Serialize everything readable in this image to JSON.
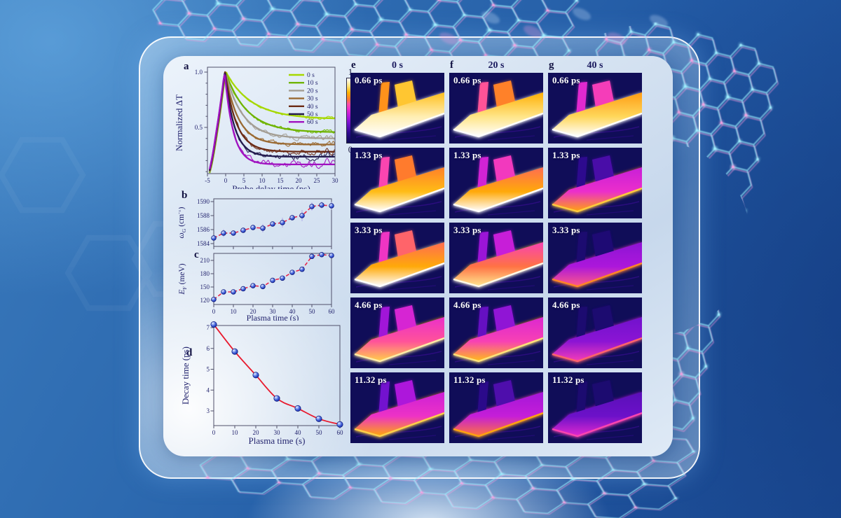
{
  "panel_letters": {
    "a": "a",
    "b": "b",
    "c": "c",
    "d": "d"
  },
  "colorbar": {
    "top_label": "1",
    "bottom_label": "0",
    "stops": [
      [
        0,
        "#0d0b56"
      ],
      [
        0.15,
        "#2d0a8e"
      ],
      [
        0.3,
        "#7312cf"
      ],
      [
        0.42,
        "#b818dd"
      ],
      [
        0.52,
        "#ea2dcc"
      ],
      [
        0.6,
        "#ff4da6"
      ],
      [
        0.68,
        "#ff7b2d"
      ],
      [
        0.78,
        "#ffb400"
      ],
      [
        0.88,
        "#ffe27a"
      ],
      [
        1,
        "#ffffff"
      ]
    ]
  },
  "chart_data": [
    {
      "id": "a",
      "type": "line",
      "title": "",
      "xlabel": "Probe delay time (ps)",
      "ylabel": "Normalized ΔT",
      "xlim": [
        -5,
        30
      ],
      "xticks": [
        -5,
        0,
        5,
        10,
        15,
        20,
        25,
        30
      ],
      "yticks_labeled": [
        1.0,
        0.5
      ],
      "yticks_minor": [
        0.9,
        0.8,
        0.7,
        0.6,
        0.4,
        0.3,
        0.2,
        0.1
      ],
      "legend_position": "top-right",
      "series": [
        {
          "name": "0 s",
          "color": "#a6d800",
          "tau": 7.15,
          "peak": 1.0,
          "plateau": 0.575,
          "noise": 0.008
        },
        {
          "name": "10 s",
          "color": "#6fb400",
          "tau": 5.85,
          "peak": 1.0,
          "plateau": 0.455,
          "noise": 0.01
        },
        {
          "name": "20 s",
          "color": "#a39d93",
          "tau": 4.7,
          "peak": 1.0,
          "plateau": 0.4,
          "noise": 0.012
        },
        {
          "name": "30 s",
          "color": "#9a6a33",
          "tau": 3.6,
          "peak": 1.0,
          "plateau": 0.345,
          "noise": 0.014
        },
        {
          "name": "40 s",
          "color": "#6b2a14",
          "tau": 3.1,
          "peak": 1.0,
          "plateau": 0.28,
          "noise": 0.016
        },
        {
          "name": "50 s",
          "color": "#221a4e",
          "tau": 2.6,
          "peak": 1.0,
          "plateau": 0.235,
          "noise": 0.018
        },
        {
          "name": "60 s",
          "color": "#a012c0",
          "tau": 2.35,
          "peak": 1.0,
          "plateau": 0.165,
          "noise": 0.022
        }
      ]
    },
    {
      "id": "b",
      "type": "scatter-line",
      "title": "",
      "xlabel": "",
      "ylabel_parts": {
        "pre": "ω",
        "sub": "G",
        "mid": " (cm",
        "sup": "-1",
        "post": ")"
      },
      "xlim": [
        0,
        60
      ],
      "xticks": [
        0,
        10,
        20,
        30,
        40,
        50,
        60
      ],
      "show_x_labels": false,
      "ylim": [
        1583.6,
        1590.4
      ],
      "yticks": [
        1584,
        1586,
        1588,
        1590
      ],
      "x": [
        0,
        5,
        10,
        15,
        20,
        25,
        30,
        35,
        40,
        45,
        50,
        55,
        60
      ],
      "y": [
        1584.8,
        1585.5,
        1585.5,
        1585.9,
        1586.3,
        1586.2,
        1586.8,
        1587.0,
        1587.7,
        1588.0,
        1589.3,
        1589.5,
        1589.4
      ],
      "yerr": [
        0.25,
        0.55,
        0.3,
        0.3,
        0.35,
        0.6,
        0.3,
        0.7,
        0.35,
        0.8,
        0.6,
        0.5,
        0.55
      ],
      "line_style": "dashed",
      "line_color": "#e8274b",
      "marker": "blue-sphere"
    },
    {
      "id": "c",
      "type": "scatter-line",
      "title": "",
      "xlabel": "Plasma time (s)",
      "ylabel_parts": {
        "pre": "E",
        "sub": "F",
        "mid": " (meV)"
      },
      "xlim": [
        0,
        60
      ],
      "xticks": [
        0,
        10,
        20,
        30,
        40,
        50,
        60
      ],
      "show_x_labels": true,
      "ylim": [
        110,
        226
      ],
      "yticks": [
        120,
        150,
        180,
        210
      ],
      "x": [
        0,
        5,
        10,
        15,
        20,
        25,
        30,
        35,
        40,
        45,
        50,
        55,
        60
      ],
      "y": [
        122,
        139,
        139,
        146,
        153,
        151,
        165,
        170,
        183,
        190,
        219,
        223,
        221
      ],
      "yerr": [
        3,
        3,
        3,
        3,
        4,
        3,
        4,
        4,
        5,
        5,
        4,
        4,
        4
      ],
      "line_style": "dashed",
      "line_color": "#e8274b",
      "marker": "blue-sphere"
    },
    {
      "id": "d",
      "type": "scatter-line",
      "title": "",
      "xlabel": "Plasma time (s)",
      "ylabel": "Decay time (ps)",
      "xlim": [
        0,
        60
      ],
      "xticks": [
        0,
        10,
        20,
        30,
        40,
        50,
        60
      ],
      "show_x_labels": true,
      "ylim": [
        2.25,
        7.1
      ],
      "yticks": [
        3,
        4,
        5,
        6,
        7
      ],
      "x": [
        0,
        10,
        20,
        30,
        40,
        50,
        60
      ],
      "y": [
        7.15,
        5.85,
        4.72,
        3.6,
        3.12,
        2.62,
        2.35
      ],
      "line_style": "smooth",
      "line_color": "#e8192d",
      "marker": "blue-sphere"
    }
  ],
  "images": {
    "columns": [
      {
        "letter": "e",
        "header": "0 s",
        "cells": [
          {
            "label": "0.66 ps",
            "intensity": 0.98
          },
          {
            "label": "1.33 ps",
            "intensity": 0.84
          },
          {
            "label": "3.33 ps",
            "intensity": 0.8
          },
          {
            "label": "4.66 ps",
            "intensity": 0.64
          },
          {
            "label": "11.32 ps",
            "intensity": 0.56
          }
        ]
      },
      {
        "letter": "f",
        "header": "20 s",
        "cells": [
          {
            "label": "0.66 ps",
            "intensity": 0.94
          },
          {
            "label": "1.33 ps",
            "intensity": 0.8
          },
          {
            "label": "3.33 ps",
            "intensity": 0.7
          },
          {
            "label": "4.66 ps",
            "intensity": 0.6
          },
          {
            "label": "11.32 ps",
            "intensity": 0.47
          }
        ]
      },
      {
        "letter": "g",
        "header": "40 s",
        "cells": [
          {
            "label": "0.66 ps",
            "intensity": 0.9
          },
          {
            "label": "1.33 ps",
            "intensity": 0.55
          },
          {
            "label": "3.33 ps",
            "intensity": 0.42
          },
          {
            "label": "4.66 ps",
            "intensity": 0.36
          },
          {
            "label": "11.32 ps",
            "intensity": 0.3
          }
        ]
      }
    ]
  },
  "style_colors": {
    "axis": "#50506a",
    "tick_text": "#23246e",
    "error_bar": "#aca6ea",
    "mesh_cyan": "#9ff0ff",
    "mesh_pink": "#ff9ce0"
  }
}
